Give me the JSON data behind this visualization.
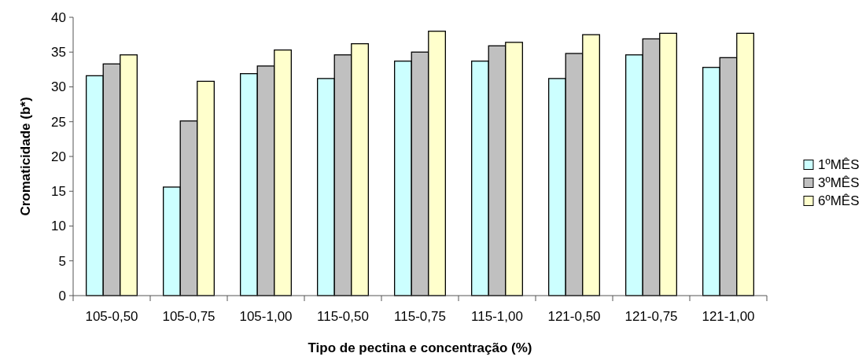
{
  "chart_data": {
    "type": "bar",
    "xlabel": "Tipo de pectina e concentração (%)",
    "ylabel": "Cromaticidade (b*)",
    "categories": [
      "105-0,50",
      "105-0,75",
      "105-1,00",
      "115-0,50",
      "115-0,75",
      "115-1,00",
      "121-0,50",
      "121-0,75",
      "121-1,00"
    ],
    "series": [
      {
        "name": "1ºMÊS",
        "color": "#ccffff",
        "values": [
          31.6,
          15.6,
          31.9,
          31.2,
          33.7,
          33.7,
          31.2,
          34.6,
          32.8
        ]
      },
      {
        "name": "3ºMÊS",
        "color": "#c0c0c0",
        "values": [
          33.3,
          25.1,
          33.0,
          34.6,
          35.0,
          35.9,
          34.8,
          36.9,
          34.2
        ]
      },
      {
        "name": "6ºMÊS",
        "color": "#ffffcc",
        "values": [
          34.6,
          30.8,
          35.3,
          36.2,
          38.0,
          36.4,
          37.5,
          37.7,
          37.7
        ]
      }
    ],
    "ylim": [
      0,
      40
    ],
    "yticks": [
      0,
      5,
      10,
      15,
      20,
      25,
      30,
      35,
      40
    ],
    "grid": false,
    "legend": "right"
  }
}
